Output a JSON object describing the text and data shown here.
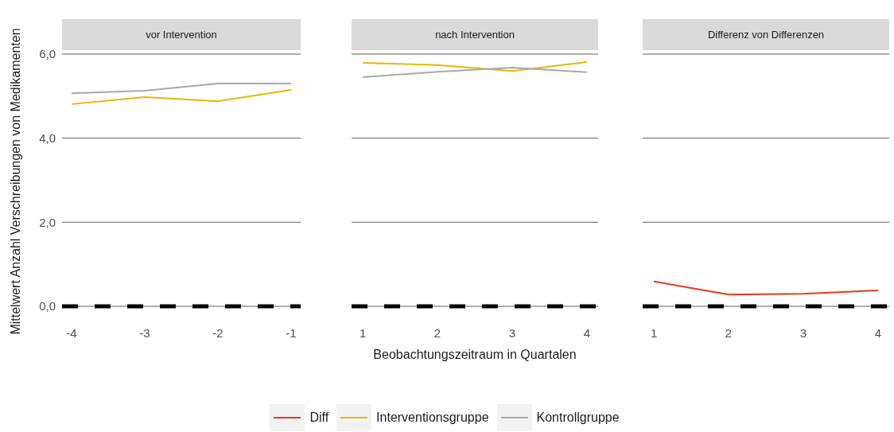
{
  "chart_data": [
    {
      "type": "line",
      "title": "vor Intervention",
      "ylabel": "Mittelwert Anzahl Verschreibungen von Medikamenten",
      "x": [
        -4,
        -3,
        -2,
        -1
      ],
      "xlim": [
        -4.13,
        -0.87
      ],
      "xticks": [
        {
          "value": -4,
          "label": "-4"
        },
        {
          "value": -3,
          "label": "-3"
        },
        {
          "value": -2,
          "label": "-2"
        },
        {
          "value": -1,
          "label": "-1"
        }
      ],
      "ylim": [
        0,
        6
      ],
      "yticks": [
        {
          "value": 0,
          "label": "0,0"
        },
        {
          "value": 2,
          "label": "2,0"
        },
        {
          "value": 4,
          "label": "4,0"
        },
        {
          "value": 6,
          "label": "6,0"
        }
      ],
      "grid": "y",
      "ref_lines": [
        {
          "axis": "y",
          "value": 0,
          "color": "#000000",
          "line_style": "dashed"
        }
      ],
      "legend": "bottom",
      "series": [
        {
          "name": "Interventionsgruppe",
          "color": "#e6b800",
          "values": [
            4.81,
            4.98,
            4.88,
            5.15
          ]
        },
        {
          "name": "Kontrollgruppe",
          "color": "#a4aaa8",
          "values": [
            5.07,
            5.13,
            5.3,
            5.3
          ]
        }
      ]
    },
    {
      "type": "line",
      "title": "nach Intervention",
      "xlabel": "Beobachtungszeitraum in Quartalen",
      "x": [
        1,
        2,
        3,
        4
      ],
      "xlim": [
        0.85,
        4.15
      ],
      "xticks": [
        1,
        2,
        3,
        4
      ],
      "ylim": [
        0,
        6
      ],
      "yticks": [
        0,
        2,
        4,
        6
      ],
      "tick_labels": "x",
      "grid": "y",
      "ref_lines": [
        {
          "axis": "y",
          "value": 0,
          "color": "#000000",
          "line_style": "dashed"
        }
      ],
      "legend": "bottom",
      "series": [
        {
          "name": "Interventionsgruppe",
          "color": "#e6b800",
          "values": [
            5.79,
            5.74,
            5.6,
            5.81
          ]
        },
        {
          "name": "Kontrollgruppe",
          "color": "#a4aaa8",
          "values": [
            5.45,
            5.58,
            5.68,
            5.57
          ]
        }
      ]
    },
    {
      "type": "line",
      "title": "Differenz von Differenzen",
      "x": [
        1,
        2,
        3,
        4
      ],
      "xlim": [
        0.85,
        4.15
      ],
      "xticks": [
        1,
        2,
        3,
        4
      ],
      "ylim": [
        0,
        6
      ],
      "yticks": [
        0,
        2,
        4,
        6
      ],
      "tick_labels": "x",
      "grid": "y",
      "ref_lines": [
        {
          "axis": "y",
          "value": 0,
          "color": "#000000",
          "line_style": "dashed"
        }
      ],
      "legend": "bottom",
      "series": [
        {
          "name": "Diff",
          "color": "#e8391d",
          "values": [
            0.59,
            0.28,
            0.3,
            0.38
          ]
        }
      ]
    }
  ]
}
